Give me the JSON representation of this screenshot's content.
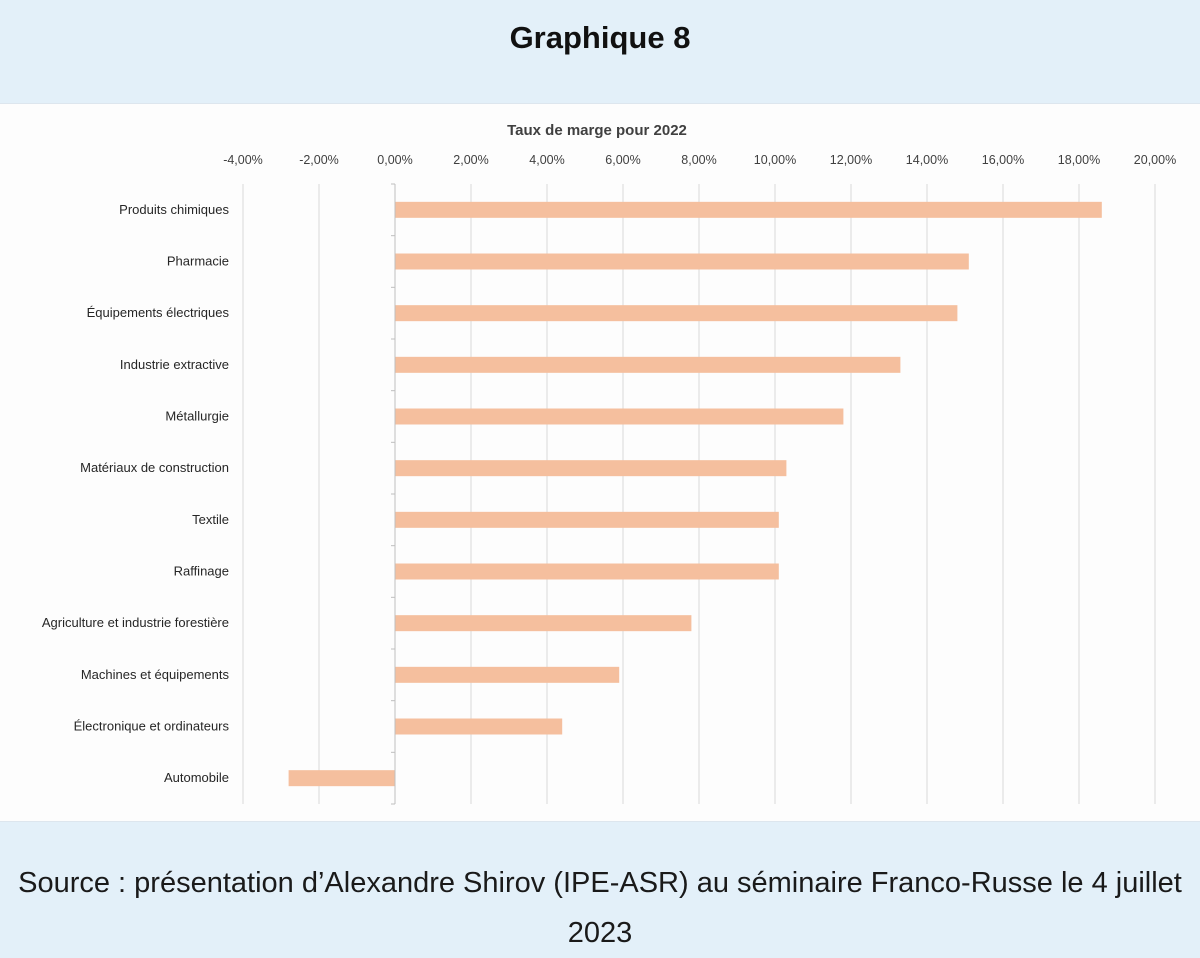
{
  "page": {
    "title": "Graphique 8",
    "source": "Source : présentation d’Alexandre Shirov (IPE-ASR) au séminaire Franco-Russe le 4 juillet 2023"
  },
  "chart_data": {
    "type": "bar",
    "orientation": "horizontal",
    "title": "Taux de marge pour 2022",
    "xlabel": "",
    "ylabel": "",
    "unit": "%",
    "xlim": [
      -4,
      20
    ],
    "x_ticks": [
      -4,
      -2,
      0,
      2,
      4,
      6,
      8,
      10,
      12,
      14,
      16,
      18,
      20
    ],
    "x_tick_labels": [
      "-4,00%",
      "-2,00%",
      "0,00%",
      "2,00%",
      "4,00%",
      "6,00%",
      "8,00%",
      "10,00%",
      "12,00%",
      "14,00%",
      "16,00%",
      "18,00%",
      "20,00%"
    ],
    "x_axis_position": "top",
    "grid": true,
    "bar_color": "#f5bf9e",
    "categories": [
      "Produits chimiques",
      "Pharmacie",
      "Équipements électriques",
      "Industrie extractive",
      "Métallurgie",
      "Matériaux de construction",
      "Textile",
      "Raffinage",
      "Agriculture et industrie forestière",
      "Machines et équipements",
      "Électronique et ordinateurs",
      "Automobile"
    ],
    "values": [
      18.6,
      15.1,
      14.8,
      13.3,
      11.8,
      10.3,
      10.1,
      10.1,
      7.8,
      5.9,
      4.4,
      -2.8
    ]
  }
}
